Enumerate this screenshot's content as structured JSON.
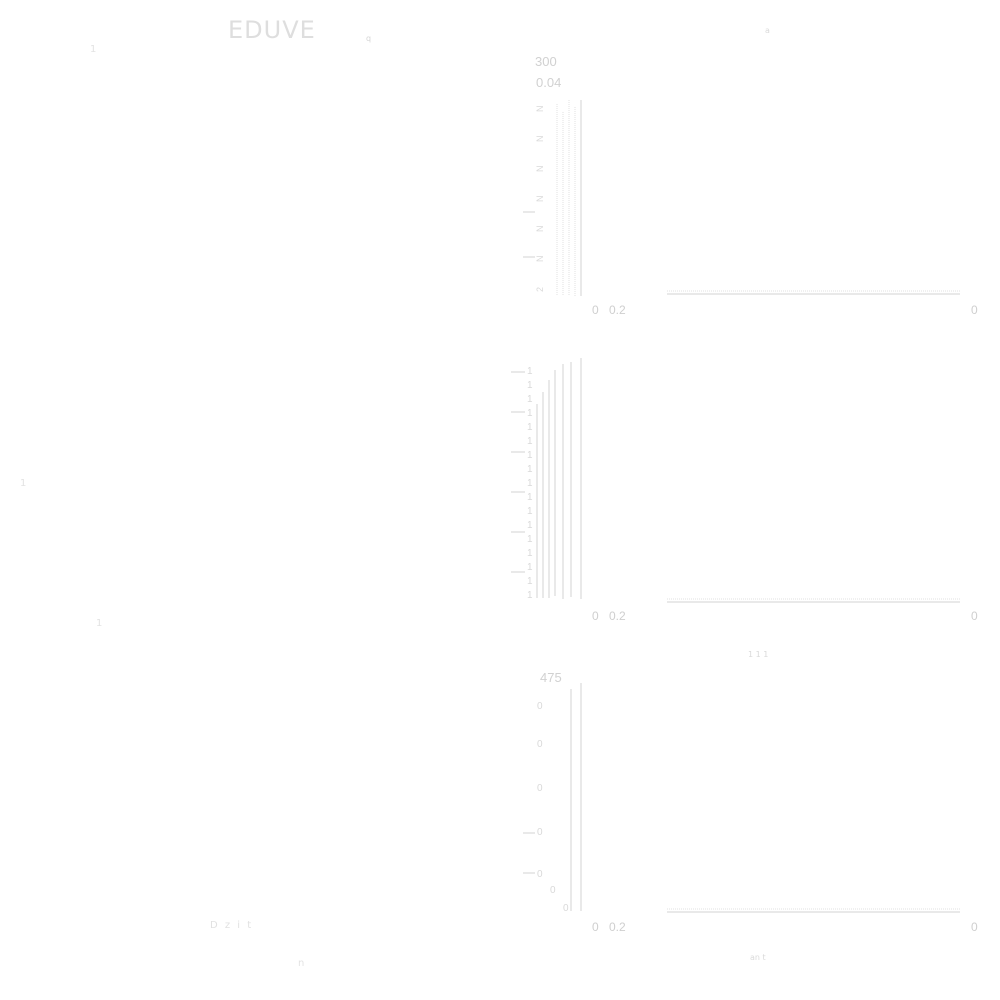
{
  "header": {
    "title": "EDUVE",
    "mark": "q"
  },
  "decor": {
    "top_right_mark": "a",
    "middle_mark": "1 1 1",
    "bottom_right_mark": "an t",
    "left_mark_1": "1",
    "left_mark_2": "1",
    "left_mark_3": "1",
    "bottom_left_text": "D    z      i     t",
    "bottom_left_mark": "n"
  },
  "chart_data": [
    {
      "type": "bar",
      "title": "",
      "categories": [],
      "values": [],
      "xlabel": "",
      "ylabel": "",
      "x_ticks": [
        "0",
        "0.2",
        "0"
      ],
      "y_labels": [
        "300",
        "0.04",
        "2",
        "N",
        "N",
        "N",
        "N",
        "N",
        "N",
        "N",
        "2",
        "1",
        "N",
        "2"
      ],
      "grid": false
    },
    {
      "type": "bar",
      "title": "",
      "categories": [],
      "values": [],
      "xlabel": "",
      "ylabel": "",
      "x_ticks": [
        "0",
        "0.2",
        "0"
      ],
      "y_labels": [
        "1",
        "1",
        "1",
        "1",
        "1",
        "1",
        "1",
        "1",
        "1",
        "1",
        "1",
        "1",
        "1",
        "1",
        "1",
        "1",
        "1",
        "1",
        "1",
        "1",
        "1",
        "1",
        "1",
        "1",
        "1",
        "1",
        "1",
        "1",
        "1",
        "1",
        "1",
        "1",
        "1"
      ],
      "grid": false
    },
    {
      "type": "bar",
      "title": "",
      "categories": [],
      "values": [],
      "xlabel": "",
      "ylabel": "",
      "x_ticks": [
        "0",
        "0.2",
        "0"
      ],
      "y_labels": [
        "475",
        "0",
        "0",
        "0",
        "0",
        "0",
        "0",
        "0",
        "0",
        "0",
        "0",
        "0"
      ],
      "grid": false
    }
  ]
}
